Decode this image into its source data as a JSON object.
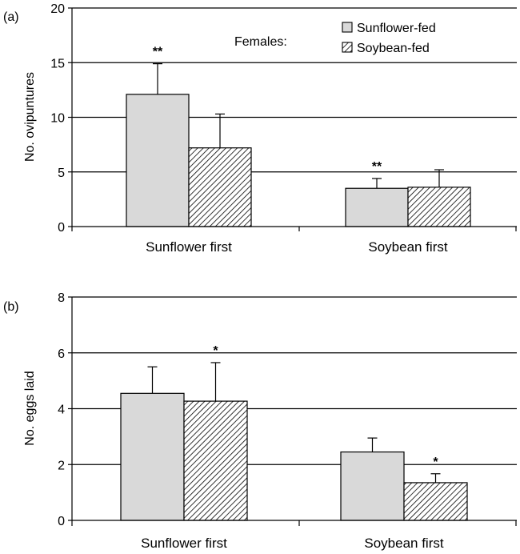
{
  "chart_data": [
    {
      "type": "bar",
      "panel_label": "(a)",
      "ylabel": "No. ovipuntures",
      "categories": [
        "Sunflower first",
        "Soybean first"
      ],
      "ylim": [
        0,
        20
      ],
      "yticks": [
        0,
        5,
        10,
        15,
        20
      ],
      "grid": true,
      "legend_title": "Females:",
      "legend_position": "top-right",
      "series": [
        {
          "name": "Sunflower-fed",
          "values": [
            12.1,
            3.5
          ],
          "errors": [
            2.8,
            0.9
          ],
          "color": "#d9d9d9",
          "pattern": "solid"
        },
        {
          "name": "Soybean-fed",
          "values": [
            7.2,
            3.6
          ],
          "errors": [
            3.1,
            1.6
          ],
          "color": "#ffffff",
          "pattern": "hatch"
        }
      ],
      "annotations": [
        {
          "category": 0,
          "series": 0,
          "text": "**"
        },
        {
          "category": 1,
          "series": 0,
          "text": "**"
        }
      ]
    },
    {
      "type": "bar",
      "panel_label": "(b)",
      "ylabel": "No. eggs laid",
      "categories": [
        "Sunflower first",
        "Soybean first"
      ],
      "ylim": [
        0,
        8
      ],
      "yticks": [
        0,
        2,
        4,
        6,
        8
      ],
      "grid": true,
      "series": [
        {
          "name": "Sunflower-fed",
          "values": [
            4.55,
            2.45
          ],
          "errors": [
            0.95,
            0.5
          ],
          "color": "#d9d9d9",
          "pattern": "solid"
        },
        {
          "name": "Soybean-fed",
          "values": [
            4.27,
            1.35
          ],
          "errors": [
            1.38,
            0.32
          ],
          "color": "#ffffff",
          "pattern": "hatch"
        }
      ],
      "annotations": [
        {
          "category": 0,
          "series": 1,
          "text": "*"
        },
        {
          "category": 1,
          "series": 1,
          "text": "*"
        }
      ]
    }
  ]
}
